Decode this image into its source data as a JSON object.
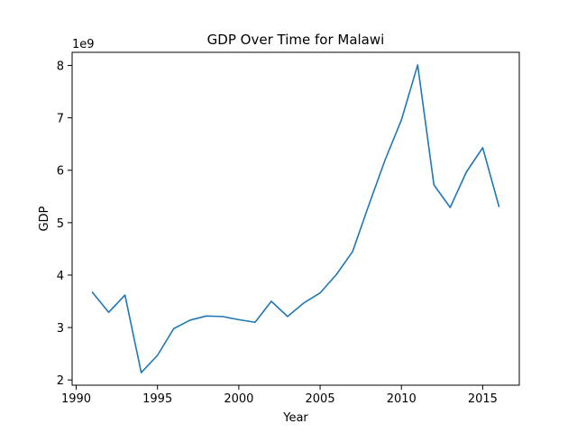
{
  "chart_data": {
    "type": "line",
    "title": "GDP Over Time for Malawi",
    "xlabel": "Year",
    "ylabel": "GDP",
    "y_offset_label": "1e9",
    "xlim": [
      1989.75,
      2017.25
    ],
    "ylim": [
      1.9,
      8.25
    ],
    "x_ticks": [
      1990,
      1995,
      2000,
      2005,
      2010,
      2015
    ],
    "y_ticks": [
      2,
      3,
      4,
      5,
      6,
      7,
      8
    ],
    "grid": false,
    "line_color": "#1f77b4",
    "series": [
      {
        "x": [
          1991,
          1992,
          1993,
          1994,
          1995,
          1996,
          1997,
          1998,
          1999,
          2000,
          2001,
          2002,
          2003,
          2004,
          2005,
          2006,
          2007,
          2008,
          2009,
          2010,
          2011,
          2012,
          2013,
          2014,
          2015,
          2016
        ],
        "values": [
          3.67,
          3.29,
          3.62,
          2.14,
          2.47,
          2.98,
          3.14,
          3.22,
          3.21,
          3.15,
          3.1,
          3.5,
          3.21,
          3.47,
          3.66,
          4.01,
          4.45,
          5.34,
          6.2,
          6.96,
          8.01,
          5.72,
          5.29,
          5.97,
          6.43,
          5.31
        ]
      }
    ]
  }
}
